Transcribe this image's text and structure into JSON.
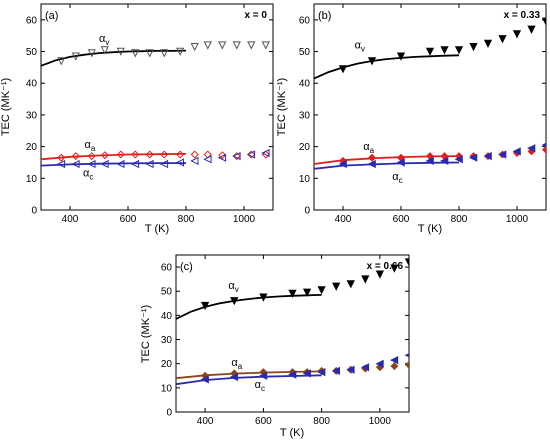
{
  "chart_data": [
    {
      "type": "scatter",
      "panel": "(a)",
      "annotation": "x = 0",
      "xlabel": "T (K)",
      "ylabel": "TEC (MK⁻¹)",
      "xlim": [
        300,
        1100
      ],
      "ylim": [
        0,
        65
      ],
      "xticks": [
        400,
        600,
        800,
        1000
      ],
      "yticks": [
        0,
        10,
        20,
        30,
        40,
        50,
        60
      ],
      "filled": false,
      "labels": [
        {
          "text": "α",
          "sub": "v",
          "x": 500,
          "y": 53
        },
        {
          "text": "α",
          "sub": "a",
          "x": 450,
          "y": 19.5
        },
        {
          "text": "α",
          "sub": "c",
          "x": 445,
          "y": 10.5
        }
      ],
      "series": [
        {
          "marker": "triangle-down",
          "color": "#555555",
          "x": [
            370,
            420,
            475,
            520,
            575,
            625,
            675,
            725,
            780,
            830,
            875,
            925,
            975,
            1025,
            1075
          ],
          "y": [
            47,
            48.5,
            49.5,
            50.5,
            50,
            49.5,
            49.5,
            49.5,
            50,
            51.5,
            52,
            52,
            52,
            52,
            52
          ]
        },
        {
          "marker": "diamond",
          "color": "#e0201a",
          "x": [
            370,
            420,
            475,
            520,
            575,
            625,
            675,
            725,
            780,
            830,
            875,
            925,
            975,
            1025,
            1075
          ],
          "y": [
            16.5,
            17,
            17,
            17.3,
            17.5,
            17.5,
            17.5,
            17.5,
            17.5,
            17.5,
            17.5,
            17.3,
            17,
            17.5,
            17.5
          ]
        },
        {
          "marker": "triangle-left",
          "color": "#2a2ab0",
          "x": [
            370,
            420,
            475,
            520,
            575,
            625,
            675,
            725,
            780,
            830,
            875,
            925,
            975,
            1025,
            1075
          ],
          "y": [
            14.5,
            14.5,
            14.5,
            14.5,
            14.5,
            14.5,
            14.5,
            14.5,
            15,
            15.5,
            16,
            16.5,
            17,
            17.5,
            18
          ]
        }
      ],
      "fits": [
        {
          "color": "#000000",
          "x": [
            300,
            350,
            400,
            450,
            500,
            550,
            600,
            650,
            700,
            750,
            800
          ],
          "y": [
            45.5,
            47.2,
            48.3,
            49,
            49.5,
            49.8,
            50,
            50.1,
            50.2,
            50.2,
            50.3
          ]
        },
        {
          "color": "#e0201a",
          "x": [
            300,
            400,
            500,
            600,
            700,
            800
          ],
          "y": [
            16,
            16.8,
            17.2,
            17.5,
            17.6,
            17.7
          ]
        },
        {
          "color": "#2a2ab0",
          "x": [
            300,
            400,
            500,
            600,
            700,
            800
          ],
          "y": [
            14,
            14.4,
            14.6,
            14.7,
            14.8,
            14.8
          ]
        }
      ]
    },
    {
      "type": "scatter",
      "panel": "(b)",
      "annotation": "x = 0.33",
      "xlabel": "T (K)",
      "ylabel": "TEC (MK⁻¹)",
      "xlim": [
        300,
        1100
      ],
      "ylim": [
        0,
        65
      ],
      "xticks": [
        400,
        600,
        800,
        1000
      ],
      "yticks": [
        0,
        10,
        20,
        30,
        40,
        50,
        60
      ],
      "filled": true,
      "labels": [
        {
          "text": "α",
          "sub": "v",
          "x": 440,
          "y": 51
        },
        {
          "text": "α",
          "sub": "a",
          "x": 470,
          "y": 19
        },
        {
          "text": "α",
          "sub": "c",
          "x": 570,
          "y": 9.5
        }
      ],
      "series": [
        {
          "marker": "triangle-down",
          "color": "#000000",
          "x": [
            400,
            500,
            600,
            700,
            750,
            800,
            850,
            900,
            950,
            1000,
            1050,
            1100
          ],
          "y": [
            44.5,
            47,
            48.5,
            50,
            50.5,
            50.5,
            51.5,
            52.5,
            54,
            55.5,
            57,
            59.5
          ]
        },
        {
          "marker": "diamond",
          "color": "#e0201a",
          "x": [
            400,
            500,
            600,
            700,
            750,
            800,
            850,
            900,
            950,
            1000,
            1050,
            1100
          ],
          "y": [
            15.5,
            16.5,
            16.5,
            17,
            17,
            17,
            17,
            17,
            17.5,
            18,
            18.5,
            19
          ]
        },
        {
          "marker": "triangle-left",
          "color": "#2a2ab0",
          "x": [
            400,
            500,
            600,
            700,
            750,
            800,
            850,
            900,
            950,
            1000,
            1050,
            1100
          ],
          "y": [
            14.5,
            14.5,
            15,
            15.5,
            15.5,
            16,
            16.5,
            17,
            17.5,
            18.5,
            19.5,
            20.5
          ]
        }
      ],
      "fits": [
        {
          "color": "#000000",
          "x": [
            300,
            350,
            400,
            450,
            500,
            550,
            600,
            650,
            700,
            750,
            800
          ],
          "y": [
            41.5,
            43.5,
            45,
            46.2,
            47,
            47.6,
            48,
            48.3,
            48.5,
            48.7,
            48.8
          ]
        },
        {
          "color": "#e0201a",
          "x": [
            300,
            400,
            500,
            600,
            700,
            800
          ],
          "y": [
            14.5,
            15.7,
            16.3,
            16.7,
            16.9,
            17
          ]
        },
        {
          "color": "#2a2ab0",
          "x": [
            300,
            400,
            500,
            600,
            700,
            800
          ],
          "y": [
            13,
            14,
            14.4,
            14.7,
            14.9,
            15
          ]
        }
      ]
    },
    {
      "type": "scatter",
      "panel": "(c)",
      "annotation": "x = 0.66",
      "xlabel": "T (K)",
      "ylabel": "TEC (MK⁻¹)",
      "xlim": [
        300,
        1100
      ],
      "ylim": [
        0,
        65
      ],
      "xticks": [
        400,
        600,
        800,
        1000
      ],
      "yticks": [
        0,
        10,
        20,
        30,
        40,
        50,
        60
      ],
      "filled": true,
      "labels": [
        {
          "text": "α",
          "sub": "v",
          "x": 480,
          "y": 51
        },
        {
          "text": "α",
          "sub": "a",
          "x": 490,
          "y": 19
        },
        {
          "text": "α",
          "sub": "c",
          "x": 570,
          "y": 10
        }
      ],
      "series": [
        {
          "marker": "triangle-down",
          "color": "#000000",
          "x": [
            400,
            500,
            600,
            700,
            750,
            800,
            850,
            900,
            950,
            1000,
            1050,
            1100
          ],
          "y": [
            44,
            46,
            47.5,
            49,
            49.5,
            50.5,
            52,
            53,
            55,
            57,
            59.5,
            62
          ]
        },
        {
          "marker": "diamond",
          "color": "#8b4513",
          "x": [
            400,
            500,
            600,
            700,
            750,
            800,
            850,
            900,
            950,
            1000,
            1050,
            1100
          ],
          "y": [
            15,
            16,
            16.5,
            16.5,
            16.5,
            17,
            17,
            17.5,
            18,
            18.5,
            19,
            19.5
          ]
        },
        {
          "marker": "triangle-left",
          "color": "#2a2ab0",
          "x": [
            400,
            500,
            600,
            700,
            750,
            800,
            850,
            900,
            950,
            1000,
            1050,
            1100
          ],
          "y": [
            13.5,
            14.5,
            15,
            15.5,
            16,
            16.5,
            17,
            17.5,
            18.5,
            20,
            21.5,
            23.5
          ]
        }
      ],
      "fits": [
        {
          "color": "#000000",
          "x": [
            300,
            350,
            400,
            450,
            500,
            550,
            600,
            650,
            700,
            750,
            800
          ],
          "y": [
            38.5,
            41.5,
            43.5,
            45,
            46,
            46.8,
            47.4,
            47.8,
            48.1,
            48.3,
            48.5
          ]
        },
        {
          "color": "#8b4513",
          "x": [
            300,
            400,
            500,
            600,
            700,
            800
          ],
          "y": [
            14,
            15.2,
            15.9,
            16.3,
            16.6,
            16.8
          ]
        },
        {
          "color": "#2a2ab0",
          "x": [
            300,
            400,
            500,
            600,
            700,
            800
          ],
          "y": [
            11.5,
            13.2,
            14.1,
            14.6,
            14.9,
            15.2
          ]
        }
      ]
    }
  ]
}
